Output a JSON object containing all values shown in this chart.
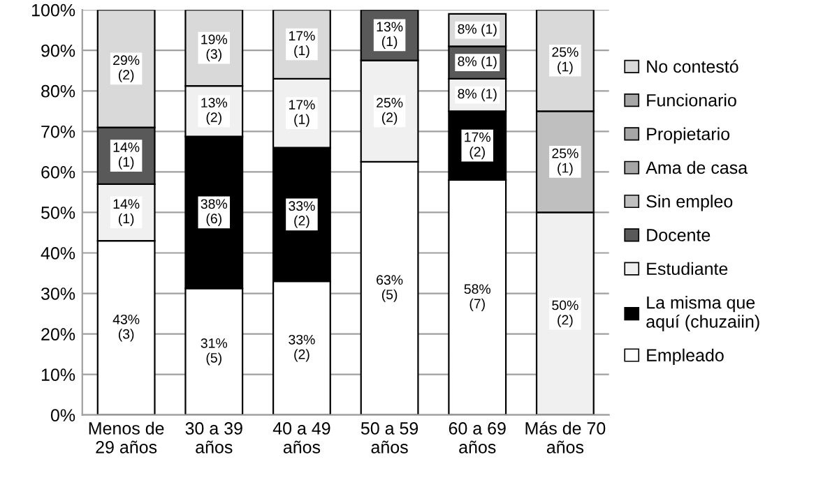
{
  "chart_data": {
    "type": "bar",
    "stacked": true,
    "categories": [
      "Menos de\n29 años",
      "30 a 39\naños",
      "40 a 49\naños",
      "50 a 59\naños",
      "60 a 69\naños",
      "Más de 70\naños"
    ],
    "series": [
      {
        "name": "Empleado",
        "color": "#ffffff",
        "values": [
          43,
          31.25,
          33,
          62.5,
          58,
          null
        ],
        "value_labels": [
          "43%\n(3)",
          "31%\n(5)",
          "33%\n(2)",
          "63%\n(5)",
          "58%\n(7)",
          null
        ]
      },
      {
        "name": "La misma que\naquí (chuzaiin)",
        "color": "#000000",
        "values": [
          null,
          37.5,
          33,
          null,
          17,
          null
        ],
        "value_labels": [
          null,
          "38%\n(6)",
          "33%\n(2)",
          null,
          "17%\n(2)",
          null
        ]
      },
      {
        "name": "Estudiante",
        "color": "#f0f0f0",
        "values": [
          14,
          12.5,
          17,
          25,
          8,
          50
        ],
        "value_labels": [
          "14%\n(1)",
          "13%\n(2)",
          "17%\n(1)",
          "25%\n(2)",
          "8% (1)",
          "50%\n(2)"
        ]
      },
      {
        "name": "Docente",
        "color": "#595959",
        "values": [
          14,
          null,
          null,
          12.5,
          8,
          null
        ],
        "value_labels": [
          "14%\n(1)",
          null,
          null,
          "13%\n(1)",
          "8% (1)",
          null
        ]
      },
      {
        "name": "Sin empleo",
        "color": "#bfbfbf",
        "values": [
          null,
          null,
          null,
          null,
          null,
          25
        ],
        "value_labels": [
          null,
          null,
          null,
          null,
          null,
          "25%\n(1)"
        ]
      },
      {
        "name": "Ama de casa",
        "color": "#a6a6a6",
        "values": [
          null,
          null,
          null,
          null,
          null,
          null
        ]
      },
      {
        "name": "Propietario",
        "color": "#a6a6a6",
        "values": [
          null,
          null,
          null,
          null,
          null,
          null
        ]
      },
      {
        "name": "Funcionario",
        "color": "#a6a6a6",
        "values": [
          null,
          null,
          null,
          null,
          null,
          null
        ]
      },
      {
        "name": "No contestó",
        "color": "#d9d9d9",
        "values": [
          29,
          18.75,
          17,
          null,
          8,
          25
        ],
        "value_labels": [
          "29%\n(2)",
          "19%\n(3)",
          "17%\n(1)",
          null,
          "8% (1)",
          "25%\n(1)"
        ]
      }
    ],
    "ylim": [
      0,
      100
    ],
    "yticks": [
      {
        "value": 0,
        "label": "0%"
      },
      {
        "value": 10,
        "label": "10%"
      },
      {
        "value": 20,
        "label": "20%"
      },
      {
        "value": 30,
        "label": "30%"
      },
      {
        "value": 40,
        "label": "40%"
      },
      {
        "value": 50,
        "label": "50%"
      },
      {
        "value": 60,
        "label": "60%"
      },
      {
        "value": 70,
        "label": "70%"
      },
      {
        "value": 80,
        "label": "80%"
      },
      {
        "value": 90,
        "label": "90%"
      },
      {
        "value": 100,
        "label": "100%"
      }
    ],
    "grid": "y",
    "legend": "right"
  }
}
